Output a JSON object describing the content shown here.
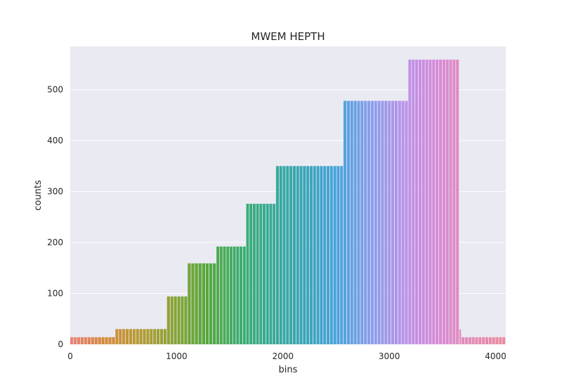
{
  "chart_data": {
    "type": "bar",
    "title": "MWEM HEPTH",
    "xlabel": "bins",
    "ylabel": "counts",
    "xlim": [
      0,
      4096
    ],
    "ylim": [
      0,
      585
    ],
    "xticks": [
      0,
      1000,
      2000,
      3000,
      4000
    ],
    "yticks": [
      0,
      100,
      200,
      300,
      400,
      500
    ],
    "grid": true,
    "segments": [
      {
        "x_start": 0,
        "x_end": 425,
        "value": 14
      },
      {
        "x_start": 425,
        "x_end": 910,
        "value": 30
      },
      {
        "x_start": 910,
        "x_end": 1105,
        "value": 94
      },
      {
        "x_start": 1105,
        "x_end": 1375,
        "value": 159
      },
      {
        "x_start": 1375,
        "x_end": 1655,
        "value": 192
      },
      {
        "x_start": 1655,
        "x_end": 1935,
        "value": 276
      },
      {
        "x_start": 1935,
        "x_end": 2570,
        "value": 350
      },
      {
        "x_start": 2570,
        "x_end": 3180,
        "value": 478
      },
      {
        "x_start": 3180,
        "x_end": 3660,
        "value": 559
      },
      {
        "x_start": 3660,
        "x_end": 3680,
        "value": 29
      },
      {
        "x_start": 3680,
        "x_end": 4096,
        "value": 14
      }
    ]
  },
  "colors": {
    "axes_background": "#eaeaf2",
    "grid": "#ffffff",
    "palette": [
      "#e8827a",
      "#d8893a",
      "#b89a35",
      "#8fa336",
      "#5aa83a",
      "#3aad6a",
      "#36aa96",
      "#38a6b8",
      "#4aa3dd",
      "#8a9eec",
      "#bb92ea",
      "#d98ad6",
      "#e78bb5",
      "#ec8ba0"
    ]
  }
}
